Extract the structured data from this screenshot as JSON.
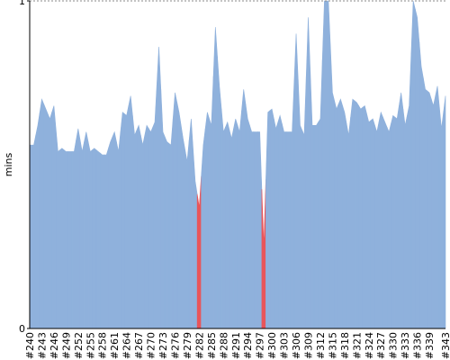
{
  "chart_data": {
    "type": "area",
    "y_label": "mins",
    "categories": [
      "#240",
      null,
      null,
      "#243",
      null,
      null,
      "#246",
      null,
      null,
      "#249",
      null,
      null,
      "#252",
      null,
      null,
      "#255",
      null,
      null,
      "#258",
      null,
      null,
      "#261",
      null,
      null,
      "#264",
      null,
      null,
      "#267",
      null,
      null,
      "#270",
      null,
      null,
      "#273",
      null,
      null,
      "#276",
      null,
      null,
      "#279",
      null,
      null,
      "#282",
      null,
      null,
      "#285",
      null,
      null,
      "#288",
      null,
      null,
      "#291",
      null,
      null,
      "#294",
      null,
      null,
      "#297",
      null,
      null,
      "#300",
      null,
      null,
      "#303",
      null,
      null,
      "#306",
      null,
      null,
      "#309",
      null,
      null,
      "#312",
      null,
      null,
      "#315",
      null,
      null,
      "#318",
      null,
      null,
      "#321",
      null,
      null,
      "#324",
      null,
      null,
      "#327",
      null,
      null,
      "#330",
      null,
      null,
      "#333",
      null,
      null,
      "#336",
      null,
      null,
      "#339",
      null,
      null,
      null,
      "#343"
    ],
    "series": [
      {
        "color": "#8fb1dc",
        "values": [
          0.56,
          0.56,
          0.62,
          0.7,
          0.67,
          0.64,
          0.68,
          0.54,
          0.55,
          0.54,
          0.54,
          0.54,
          0.61,
          0.54,
          0.6,
          0.54,
          0.55,
          0.54,
          0.53,
          0.53,
          0.57,
          0.6,
          0.54,
          0.66,
          0.65,
          0.71,
          0.59,
          0.62,
          0.56,
          0.62,
          0.6,
          0.63,
          0.86,
          0.6,
          0.57,
          0.56,
          0.72,
          0.66,
          0.58,
          0.51,
          0.64,
          0.45,
          null,
          0.56,
          0.66,
          0.62,
          0.92,
          0.74,
          0.6,
          0.63,
          0.58,
          0.64,
          0.6,
          0.73,
          0.64,
          0.6,
          0.6,
          0.6,
          null,
          0.66,
          0.67,
          0.61,
          0.65,
          0.6,
          0.6,
          0.6,
          0.9,
          0.62,
          0.59,
          0.95,
          0.62,
          0.62,
          0.64,
          1.0,
          1.0,
          0.72,
          0.67,
          0.7,
          0.66,
          0.59,
          0.7,
          0.69,
          0.67,
          0.68,
          0.63,
          0.64,
          0.6,
          0.66,
          0.63,
          0.6,
          0.65,
          0.64,
          0.72,
          0.62,
          0.68,
          1.0,
          0.95,
          0.8,
          0.73,
          0.72,
          0.68,
          0.74,
          0.61,
          0.71
        ]
      },
      {
        "color": "#e8555a",
        "values": [
          null,
          null,
          null,
          null,
          null,
          null,
          null,
          null,
          null,
          null,
          null,
          null,
          null,
          null,
          null,
          null,
          null,
          null,
          null,
          null,
          null,
          null,
          null,
          null,
          null,
          null,
          null,
          null,
          null,
          null,
          null,
          null,
          null,
          null,
          null,
          null,
          null,
          null,
          null,
          null,
          null,
          null,
          0.37,
          null,
          null,
          null,
          null,
          null,
          null,
          null,
          null,
          null,
          null,
          null,
          null,
          null,
          null,
          null,
          0.25,
          null,
          null,
          null,
          null,
          null,
          null,
          null,
          null,
          null,
          null,
          null,
          null,
          null,
          null,
          null,
          null,
          null,
          null,
          null,
          null,
          null,
          null,
          null,
          null,
          null,
          null,
          null,
          null,
          null,
          null,
          null,
          null,
          null,
          null,
          null,
          null,
          null,
          null,
          null,
          null,
          null,
          null,
          null,
          null,
          null
        ]
      }
    ],
    "ylim": [
      0,
      1
    ],
    "yticks": [
      0,
      1
    ]
  }
}
